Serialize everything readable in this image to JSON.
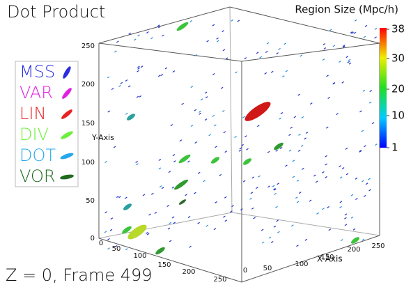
{
  "title": "Dot Product",
  "colorbar": {
    "title": "Region Size (Mpc/h)",
    "ticks": [
      "38",
      "30",
      "20",
      "10",
      "1"
    ]
  },
  "legend": [
    {
      "label": "MSS",
      "color": "#2a2ee0"
    },
    {
      "label": "VAR",
      "color": "#e020e0"
    },
    {
      "label": "LIN",
      "color": "#e82222"
    },
    {
      "label": "DIV",
      "color": "#6cf03a"
    },
    {
      "label": "DOT",
      "color": "#26a8ec"
    },
    {
      "label": "VOR",
      "color": "#1f6a1f"
    }
  ],
  "y_axis": {
    "label": "Y-Axis",
    "ticks": [
      "250",
      "200",
      "150",
      "100",
      "50",
      "0"
    ]
  },
  "x_axis": {
    "label": "X-Axis",
    "ticks": [
      "0",
      "50",
      "100",
      "150",
      "200",
      "250"
    ]
  },
  "z_axis": {
    "ticks": [
      "0",
      "50",
      "100",
      "150",
      "200",
      "250"
    ]
  },
  "footer": "Z = 0, Frame 499"
}
